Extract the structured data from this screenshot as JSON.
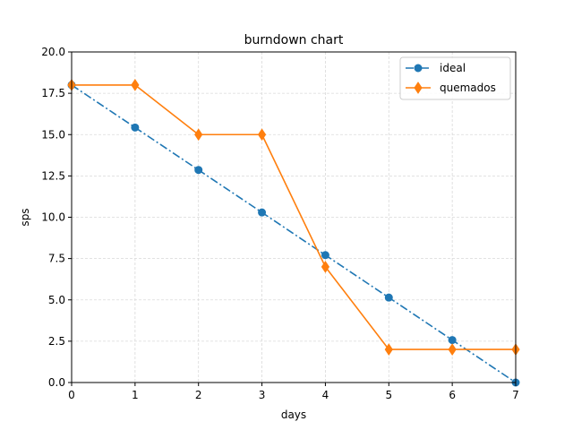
{
  "chart_data": {
    "type": "line",
    "title": "burndown chart",
    "xlabel": "days",
    "ylabel": "sps",
    "xlim": [
      0,
      7
    ],
    "ylim": [
      0,
      20
    ],
    "x_ticks": [
      0,
      1,
      2,
      3,
      4,
      5,
      6,
      7
    ],
    "y_ticks": [
      0,
      2.5,
      5,
      7.5,
      10,
      12.5,
      15,
      17.5,
      20
    ],
    "x_tick_labels": [
      "0",
      "1",
      "2",
      "3",
      "4",
      "5",
      "6",
      "7"
    ],
    "y_tick_labels": [
      "0.0",
      "2.5",
      "5.0",
      "7.5",
      "10.0",
      "12.5",
      "15.0",
      "17.5",
      "20.0"
    ],
    "grid": true,
    "legend_position": "top-right",
    "x": [
      0,
      1,
      2,
      3,
      4,
      5,
      6,
      7
    ],
    "series": [
      {
        "name": "ideal",
        "values": [
          18,
          15.43,
          12.86,
          10.29,
          7.71,
          5.14,
          2.57,
          0
        ],
        "color": "#1f77b4",
        "marker": "circle",
        "line_style": "dashdot"
      },
      {
        "name": "quemados",
        "values": [
          18,
          18,
          15,
          15,
          7,
          2,
          2,
          2
        ],
        "color": "#ff7f0e",
        "marker": "diamond",
        "line_style": "solid"
      }
    ]
  }
}
